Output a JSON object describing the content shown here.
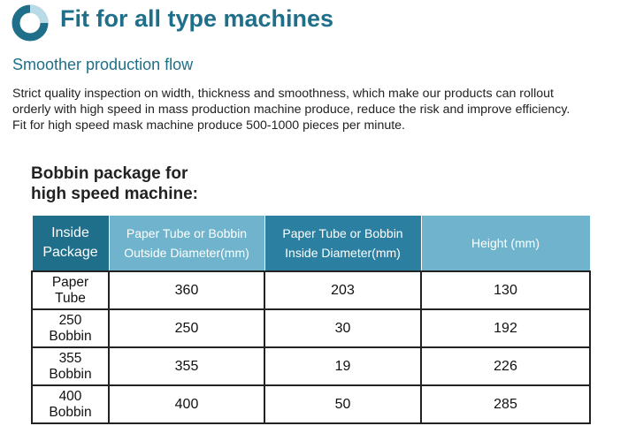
{
  "header": {
    "title": "Fit for all type machines",
    "accent_color": "#1f6f8a",
    "icon": "ring-icon"
  },
  "section": {
    "subtitle": "Smoother production flow",
    "paragraph_lines": [
      "Strict quality inspection on width, thickness and smoothness, which make our products can rollout",
      "orderly with high speed in mass production machine produce, reduce the risk and improve efficiency.",
      "Fit for high speed mask machine produce 500-1000 pieces per minute."
    ]
  },
  "bobbin": {
    "title_lines": [
      "Bobbin package for",
      "high speed machine:"
    ]
  },
  "table": {
    "header_colors": [
      "#1f6f8a",
      "#6fb4cc",
      "#2b7fa0",
      "#6fb4cc"
    ],
    "headers": [
      [
        "Inside",
        "Package"
      ],
      [
        "Paper Tube or Bobbin",
        "Outside Diameter(mm)"
      ],
      [
        "Paper Tube or Bobbin",
        "Inside Diameter(mm)"
      ],
      [
        "Height (mm)"
      ]
    ],
    "rows": [
      {
        "label": [
          "Paper",
          "Tube"
        ],
        "outside": "360",
        "inside": "203",
        "height": "130"
      },
      {
        "label": [
          "250",
          "Bobbin"
        ],
        "outside": "250",
        "inside": "30",
        "height": "192"
      },
      {
        "label": [
          "355",
          "Bobbin"
        ],
        "outside": "355",
        "inside": "19",
        "height": "226"
      },
      {
        "label": [
          "400",
          "Bobbin"
        ],
        "outside": "400",
        "inside": "50",
        "height": "285"
      }
    ]
  }
}
